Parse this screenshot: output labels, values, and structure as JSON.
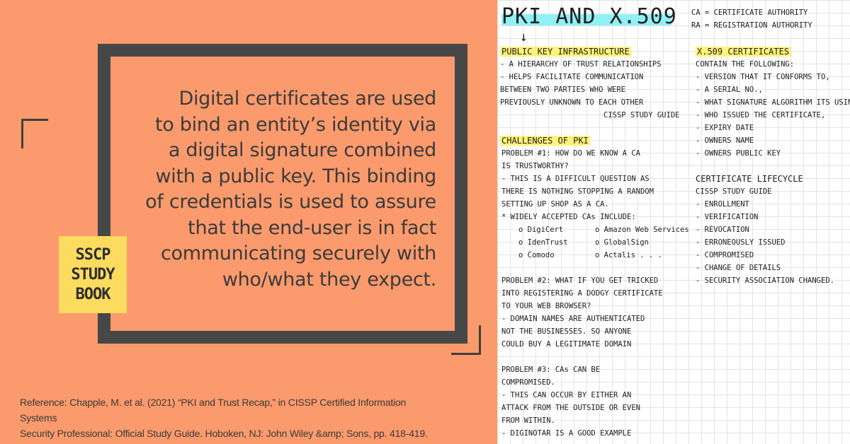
{
  "quote_lines": [
    "Digital certificates are used",
    "to bind an entity’s identity via",
    "a digital signature combined",
    "with a public key. This binding",
    "of credentials is used to assure",
    "that the end-user is in fact",
    "communicating securely with",
    "who/what they expect."
  ],
  "badge": [
    "SSCP",
    "STUDY",
    "BOOK"
  ],
  "reference": [
    "Reference: Chapple, M. et al. (2021) “PKI and Trust Recap,” in CISSP Certified Information Systems",
    "Security Professional: Official Study Guide. Hoboken, NJ: John Wiley &amp; Sons, pp. 418-419."
  ],
  "notes": {
    "title": "PKI AND X.509",
    "arrow": "↓",
    "ca_def": "CA = CERTIFICATE AUTHORITY",
    "ra_def": "RA = REGISTRATION AUTHORITY",
    "pki_heading": "PUBLIC KEY INFRASTRUCTURE",
    "pki_lines": [
      "- A HIERARCHY OF TRUST RELATIONSHIPS",
      "- HELPS FACILITATE COMMUNICATION",
      "  BETWEEN TWO PARTIES WHO WERE",
      "  PREVIOUSLY UNKNOWN TO EACH OTHER"
    ],
    "pki_source": "CISSP STUDY GUIDE",
    "challenges_heading": "CHALLENGES OF PKI",
    "problem1": [
      "PROBLEM #1: HOW DO WE KNOW A CA",
      "IS TRUSTWORTHY?",
      "- THIS IS A DIFFICULT QUESTION AS",
      "  THERE IS NOTHING STOPPING A RANDOM",
      "  SETTING UP SHOP AS A CA.",
      "   * WIDELY ACCEPTED CAs INCLUDE:"
    ],
    "cas_left": [
      "o DigiCert",
      "o IdenTrust",
      "o Comodo"
    ],
    "cas_right": [
      "o Amazon Web Services",
      "o GlobalSign",
      "o Actalis . . ."
    ],
    "problem2": [
      "PROBLEM #2: WHAT IF YOU GET TRICKED",
      "INTO REGISTERING A DODGY CERTIFICATE",
      "TO YOUR WEB BROWSER?",
      "- DOMAIN NAMES ARE AUTHENTICATED",
      "  NOT THE BUSINESSES. SO ANYONE",
      "  COULD BUY A LEGITIMATE DOMAIN"
    ],
    "problem3": [
      "PROBLEM #3: CAs CAN BE",
      "COMPROMISED.",
      "- THIS CAN OCCUR BY EITHER AN",
      "  ATTACK FROM THE OUTSIDE OR EVEN",
      "  FROM WITHIN.",
      "- DIGINOTAR IS A GOOD EXAMPLE"
    ],
    "x509_heading": "X.509 CERTIFICATES",
    "x509_lines": [
      "CONTAIN THE FOLLOWING:",
      "- VERSION THAT IT CONFORMS TO,",
      "- A SERIAL NO.,",
      "- WHAT SIGNATURE ALGORITHM ITS USING",
      "- WHO ISSUED THE CERTIFICATE,",
      "- EXPIRY DATE",
      "- OWNERS NAME",
      "- OWNERS PUBLIC KEY"
    ],
    "lifecycle_heading": "CERTIFICATE LIFECYCLE",
    "lifecycle_lines": [
      "CISSP STUDY GUIDE",
      "- ENROLLMENT",
      "- VERIFICATION",
      "- REVOCATION",
      "   - ERRONEOUSLY ISSUED",
      "   - COMPROMISED",
      "   - CHANGE OF DETAILS",
      "   - SECURITY ASSOCIATION CHANGED."
    ]
  }
}
